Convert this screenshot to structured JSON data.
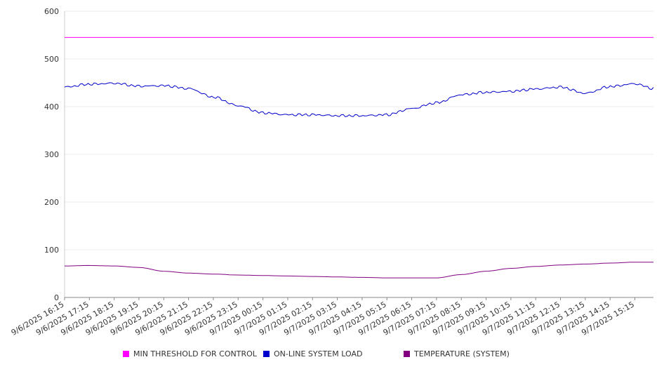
{
  "chart_data": {
    "type": "line",
    "title": "",
    "xlabel": "",
    "ylabel": "",
    "ylim": [
      0,
      600
    ],
    "yticks": [
      0,
      100,
      200,
      300,
      400,
      500,
      600
    ],
    "grid": true,
    "legend_position": "bottom",
    "x_labels": [
      "9/6/2025 16:15",
      "9/6/2025 17:15",
      "9/6/2025 18:15",
      "9/6/2025 19:15",
      "9/6/2025 20:15",
      "9/6/2025 21:15",
      "9/6/2025 22:15",
      "9/6/2025 23:15",
      "9/7/2025 00:15",
      "9/7/2025 01:15",
      "9/7/2025 02:15",
      "9/7/2025 03:15",
      "9/7/2025 04:15",
      "9/7/2025 05:15",
      "9/7/2025 06:15",
      "9/7/2025 07:15",
      "9/7/2025 08:15",
      "9/7/2025 09:15",
      "9/7/2025 10:15",
      "9/7/2025 11:15",
      "9/7/2025 12:15",
      "9/7/2025 13:15",
      "9/7/2025 14:15",
      "9/7/2025 15:15"
    ],
    "x_hours": [
      0,
      1,
      2,
      3,
      4,
      5,
      6,
      7,
      8,
      9,
      10,
      11,
      12,
      13,
      14,
      15,
      16,
      17,
      18,
      19,
      20,
      21,
      22,
      23,
      23.75
    ],
    "series": [
      {
        "name": "MIN THRESHOLD FOR CONTROL",
        "color": "#ff00ff",
        "values": [
          545,
          545,
          545,
          545,
          545,
          545,
          545,
          545,
          545,
          545,
          545,
          545,
          545,
          545,
          545,
          545,
          545,
          545,
          545,
          545,
          545,
          545,
          545,
          545,
          545
        ]
      },
      {
        "name": "ON-LINE SYSTEM LOAD",
        "color": "#0000cc",
        "values": [
          441,
          447,
          449,
          443,
          444,
          438,
          420,
          402,
          387,
          383,
          383,
          381,
          381,
          383,
          396,
          408,
          425,
          430,
          432,
          437,
          441,
          428,
          442,
          448,
          438
        ]
      },
      {
        "name": "TEMPERATURE (SYSTEM)",
        "color": "#800080",
        "values": [
          66,
          67,
          66,
          63,
          55,
          51,
          49,
          47,
          46,
          45,
          44,
          43,
          42,
          41,
          41,
          41,
          48,
          55,
          61,
          65,
          68,
          70,
          72,
          74,
          74
        ]
      }
    ]
  }
}
